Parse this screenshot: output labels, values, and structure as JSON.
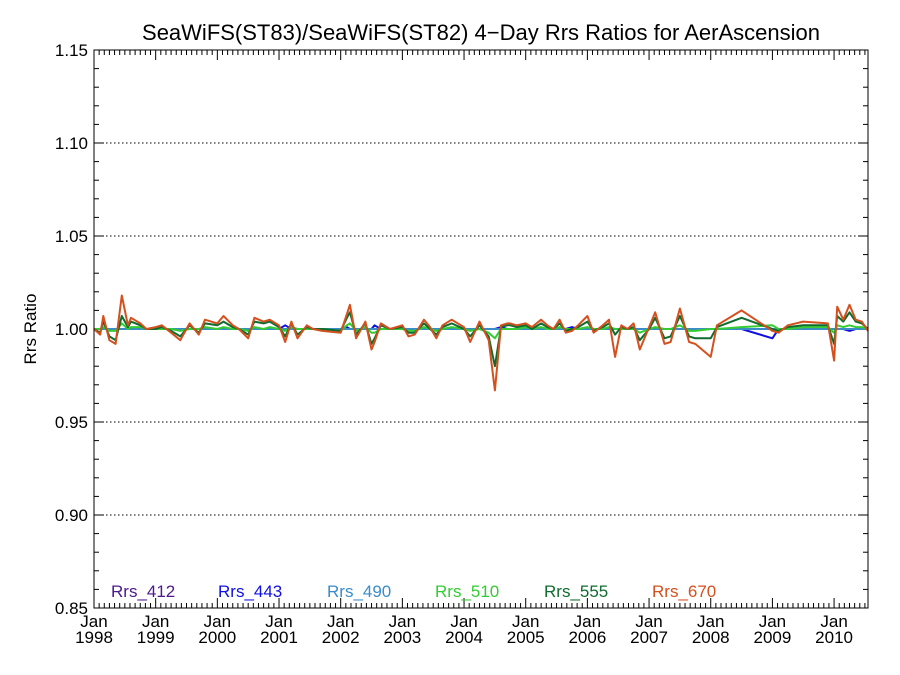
{
  "chart_data": {
    "type": "line",
    "title": "SeaWiFS(ST83)/SeaWiFS(ST82) 4−Day Rrs Ratios for AerAscension",
    "xlabel": "",
    "ylabel": "Rrs Ratio",
    "xlim": [
      1998.0,
      2010.55
    ],
    "ylim": [
      0.85,
      1.15
    ],
    "yticks": [
      "0.85",
      "0.90",
      "0.95",
      "1.00",
      "1.05",
      "1.10",
      "1.15"
    ],
    "ytick_values": [
      0.85,
      0.9,
      0.95,
      1.0,
      1.05,
      1.1,
      1.15
    ],
    "xtick_months": [
      "Jan",
      "Jan",
      "Jan",
      "Jan",
      "Jan",
      "Jan",
      "Jan",
      "Jan",
      "Jan",
      "Jan",
      "Jan",
      "Jan",
      "Jan"
    ],
    "xtick_years": [
      "1998",
      "1999",
      "2000",
      "2001",
      "2002",
      "2003",
      "2004",
      "2005",
      "2006",
      "2007",
      "2008",
      "2009",
      "2010"
    ],
    "xtick_values": [
      1998,
      1999,
      2000,
      2001,
      2002,
      2003,
      2004,
      2005,
      2006,
      2007,
      2008,
      2009,
      2010
    ],
    "grid": "horizontal dotted",
    "legend_placement": "bottom inside plot",
    "x": [
      1998.0,
      1998.1,
      1998.15,
      1998.25,
      1998.35,
      1998.45,
      1998.55,
      1998.6,
      1998.75,
      1998.85,
      1999.0,
      1999.1,
      1999.25,
      1999.4,
      1999.55,
      1999.7,
      1999.8,
      2000.0,
      2000.1,
      2000.25,
      2000.35,
      2000.5,
      2000.6,
      2000.75,
      2000.85,
      2001.0,
      2001.1,
      2001.2,
      2001.3,
      2001.45,
      2001.55,
      2001.7,
      2002.0,
      2002.1,
      2002.15,
      2002.25,
      2002.4,
      2002.5,
      2002.55,
      2002.65,
      2002.8,
      2003.0,
      2003.1,
      2003.2,
      2003.35,
      2003.45,
      2003.55,
      2003.65,
      2003.8,
      2004.0,
      2004.1,
      2004.25,
      2004.4,
      2004.5,
      2004.6,
      2004.7,
      2004.75,
      2004.85,
      2005.0,
      2005.1,
      2005.25,
      2005.35,
      2005.45,
      2005.55,
      2005.65,
      2005.75,
      2005.85,
      2006.0,
      2006.1,
      2006.25,
      2006.35,
      2006.45,
      2006.55,
      2006.65,
      2006.75,
      2006.85,
      2007.0,
      2007.1,
      2007.25,
      2007.35,
      2007.5,
      2007.65,
      2007.75,
      2008.0,
      2008.1,
      2008.5,
      2009.0,
      2009.1,
      2009.25,
      2009.5,
      2009.9,
      2010.0,
      2010.05,
      2010.15,
      2010.25,
      2010.35,
      2010.45,
      2010.55
    ],
    "series": [
      {
        "name": "Rrs_412",
        "color": "#4B1A8C",
        "values": [
          1.0,
          1.0,
          1.0,
          1.0,
          1.0,
          1.0,
          1.0,
          1.0,
          1.0,
          1.0,
          1.0,
          1.0,
          1.0,
          1.0,
          1.0,
          1.0,
          1.0,
          1.0,
          1.0,
          1.0,
          1.0,
          1.0,
          1.0,
          1.0,
          1.0,
          1.0,
          1.0,
          1.0,
          1.0,
          1.0,
          1.0,
          1.0,
          1.0,
          1.0,
          1.0,
          1.0,
          1.0,
          1.0,
          1.0,
          1.0,
          1.0,
          1.0,
          1.0,
          1.0,
          1.0,
          1.0,
          1.0,
          1.0,
          1.0,
          1.0,
          1.0,
          1.0,
          1.0,
          1.0,
          1.0,
          1.0,
          1.0,
          1.0,
          1.0,
          1.0,
          1.0,
          1.0,
          1.0,
          1.0,
          1.0,
          1.0,
          1.0,
          1.0,
          1.0,
          1.0,
          1.0,
          1.0,
          1.0,
          1.0,
          1.0,
          1.0,
          1.0,
          1.0,
          1.0,
          1.0,
          1.0,
          1.0,
          1.0,
          1.0,
          1.0,
          1.0,
          1.0,
          1.0,
          1.0,
          1.0,
          1.0,
          1.0,
          1.0,
          1.0,
          1.0,
          1.0,
          1.0,
          1.0
        ]
      },
      {
        "name": "Rrs_443",
        "color": "#1010E0",
        "values": [
          1.0,
          1.0,
          1.0,
          1.0,
          1.0,
          1.0,
          1.0,
          1.0,
          1.0,
          1.0,
          1.0,
          1.0,
          1.0,
          1.0,
          1.0,
          1.0,
          1.0,
          1.0,
          1.0,
          1.0,
          1.0,
          1.0,
          1.0,
          1.0,
          1.0,
          1.0,
          1.002,
          1.0,
          1.0,
          1.0,
          1.0,
          1.0,
          1.0,
          1.001,
          1.0,
          1.0,
          1.0,
          1.0,
          1.002,
          1.0,
          1.0,
          1.0,
          1.0,
          1.0,
          1.0,
          1.0,
          1.0,
          1.0,
          1.0,
          1.0,
          1.0,
          1.0,
          1.0,
          1.0,
          1.001,
          1.0,
          1.0,
          1.0,
          1.0,
          1.0,
          1.0,
          1.0,
          1.0,
          1.0,
          1.0,
          1.001,
          1.0,
          1.0,
          1.0,
          1.0,
          1.0,
          1.0,
          1.0,
          1.0,
          1.0,
          1.0,
          1.0,
          1.0,
          1.0,
          1.0,
          1.0,
          1.0,
          1.0,
          1.0,
          1.0,
          1.0,
          0.995,
          1.0,
          1.0,
          1.0,
          1.0,
          1.0,
          1.0,
          1.0,
          0.999,
          1.0,
          1.0,
          1.0
        ]
      },
      {
        "name": "Rrs_490",
        "color": "#3A8CC8",
        "values": [
          1.0,
          1.0,
          1.0,
          1.0,
          1.0,
          1.0,
          1.0,
          1.0,
          1.0,
          1.0,
          1.0,
          1.0,
          1.0,
          1.0,
          1.0,
          1.0,
          1.0,
          1.0,
          1.0,
          1.0,
          1.0,
          1.0,
          1.0,
          1.0,
          1.0,
          1.0,
          1.0,
          1.0,
          1.0,
          1.0,
          1.0,
          1.0,
          1.0,
          1.0,
          1.0,
          1.0,
          1.0,
          1.0,
          1.0,
          1.0,
          1.0,
          1.0,
          1.0,
          1.0,
          1.0,
          1.0,
          1.0,
          1.0,
          1.0,
          1.0,
          1.0,
          1.0,
          1.0,
          1.0,
          1.0,
          1.0,
          1.0,
          1.0,
          1.0,
          1.0,
          1.0,
          1.0,
          1.0,
          1.0,
          1.0,
          1.0,
          1.0,
          1.0,
          1.0,
          1.0,
          1.0,
          1.0,
          1.0,
          1.0,
          1.0,
          1.0,
          1.0,
          1.0,
          1.0,
          1.0,
          1.0,
          1.0,
          1.0,
          1.0,
          1.0,
          1.0,
          1.0,
          1.0,
          1.0,
          1.0,
          1.0,
          1.0,
          1.0,
          1.0,
          1.0,
          1.0,
          1.0,
          1.0
        ]
      },
      {
        "name": "Rrs_510",
        "color": "#33CC33",
        "values": [
          1.0,
          1.0,
          1.001,
          0.999,
          0.999,
          1.003,
          1.0,
          1.001,
          1.001,
          1.0,
          1.0,
          1.0,
          1.0,
          0.999,
          1.0,
          1.0,
          1.001,
          1.0,
          1.001,
          1.0,
          1.0,
          0.999,
          1.001,
          1.0,
          1.001,
          1.0,
          0.999,
          1.001,
          1.0,
          1.0,
          1.0,
          1.0,
          0.999,
          1.002,
          1.003,
          0.999,
          1.001,
          0.998,
          0.998,
          1.0,
          1.0,
          1.0,
          0.999,
          0.999,
          1.001,
          1.0,
          0.999,
          1.0,
          1.001,
          1.0,
          0.999,
          1.0,
          0.998,
          0.995,
          1.0,
          1.0,
          1.0,
          1.0,
          1.001,
          1.0,
          1.001,
          1.0,
          1.0,
          1.001,
          1.0,
          1.0,
          1.0,
          1.001,
          1.0,
          1.0,
          1.001,
          1.0,
          1.0,
          1.0,
          1.0,
          0.998,
          1.0,
          1.001,
          1.0,
          1.0,
          1.002,
          0.999,
          0.999,
          1.0,
          1.0,
          1.001,
          1.002,
          1.0,
          1.0,
          1.001,
          1.001,
          0.998,
          1.002,
          1.001,
          1.002,
          1.001,
          1.001,
          1.0
        ]
      },
      {
        "name": "Rrs_555",
        "color": "#0F6B2E",
        "values": [
          1.0,
          0.998,
          1.004,
          0.996,
          0.994,
          1.007,
          1.001,
          1.004,
          1.002,
          1.0,
          1.0,
          1.001,
          0.999,
          0.996,
          1.002,
          0.998,
          1.003,
          1.002,
          1.004,
          1.001,
          1.0,
          0.997,
          1.004,
          1.003,
          1.004,
          1.001,
          0.996,
          1.003,
          0.997,
          1.001,
          1.0,
          1.0,
          0.999,
          1.006,
          1.009,
          0.997,
          1.003,
          0.992,
          0.995,
          1.002,
          1.0,
          1.001,
          0.998,
          0.998,
          1.003,
          1.0,
          0.997,
          1.001,
          1.003,
          1.0,
          0.996,
          1.002,
          0.996,
          0.98,
          1.001,
          1.002,
          1.002,
          1.001,
          1.002,
          1.0,
          1.003,
          1.001,
          1.0,
          1.003,
          0.999,
          1.0,
          1.001,
          1.004,
          0.999,
          1.001,
          1.003,
          0.997,
          1.001,
          1.0,
          1.001,
          0.994,
          1.0,
          1.006,
          0.995,
          0.996,
          1.007,
          0.996,
          0.995,
          0.995,
          1.001,
          1.006,
          1.0,
          0.999,
          1.001,
          1.002,
          1.002,
          0.992,
          1.007,
          1.004,
          1.009,
          1.004,
          1.003,
          1.0
        ]
      },
      {
        "name": "Rrs_670",
        "color": "#D4501E",
        "values": [
          1.0,
          0.997,
          1.007,
          0.994,
          0.992,
          1.018,
          1.002,
          1.006,
          1.003,
          1.0,
          1.001,
          1.002,
          0.998,
          0.994,
          1.003,
          0.997,
          1.005,
          1.003,
          1.007,
          1.002,
          1.0,
          0.995,
          1.006,
          1.004,
          1.005,
          1.002,
          0.993,
          1.004,
          0.995,
          1.002,
          1.0,
          0.999,
          0.998,
          1.008,
          1.013,
          0.995,
          1.004,
          0.989,
          0.993,
          1.003,
          1.0,
          1.002,
          0.996,
          0.997,
          1.005,
          1.001,
          0.995,
          1.002,
          1.005,
          1.001,
          0.993,
          1.004,
          0.994,
          0.967,
          1.002,
          1.003,
          1.003,
          1.002,
          1.003,
          1.001,
          1.005,
          1.002,
          1.0,
          1.005,
          0.998,
          0.999,
          1.002,
          1.007,
          0.998,
          1.002,
          1.005,
          0.985,
          1.002,
          1.0,
          1.003,
          0.989,
          1.001,
          1.009,
          0.992,
          0.993,
          1.011,
          0.993,
          0.992,
          0.985,
          1.002,
          1.01,
          0.999,
          0.998,
          1.002,
          1.004,
          1.003,
          0.983,
          1.012,
          1.005,
          1.013,
          1.005,
          1.004,
          0.999
        ]
      }
    ]
  }
}
